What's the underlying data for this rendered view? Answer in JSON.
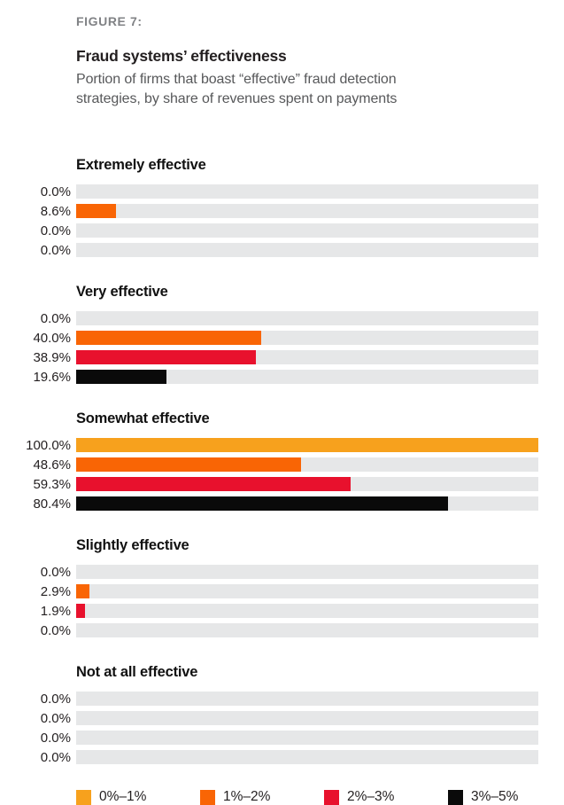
{
  "header": {
    "figure_label": "FIGURE 7:",
    "title": "Fraud systems’ effectiveness",
    "subtitle_line1": "Portion of firms that boast “effective” fraud detection",
    "subtitle_line2": "strategies, by share of revenues spent on payments"
  },
  "palette": {
    "figure_label_gray": "#808285",
    "subtitle_gray": "#57585a",
    "text_black": "#231f20",
    "bar_track_gray": "#e6e7e8"
  },
  "chart_data": {
    "type": "bar",
    "orientation": "horizontal",
    "title": "Fraud systems’ effectiveness",
    "subtitle": "Portion of firms that boast “effective” fraud detection strategies, by share of revenues spent on payments",
    "categories": [
      "Extremely effective",
      "Very effective",
      "Somewhat effective",
      "Slightly effective",
      "Not at all effective"
    ],
    "series": [
      {
        "name": "0%–1%",
        "color": "#f7a11d",
        "values": [
          0.0,
          0.0,
          100.0,
          0.0,
          0.0
        ]
      },
      {
        "name": "1%–2%",
        "color": "#f96505",
        "values": [
          8.6,
          40.0,
          48.6,
          2.9,
          0.0
        ]
      },
      {
        "name": "2%–3%",
        "color": "#e8112d",
        "values": [
          0.0,
          38.9,
          59.3,
          1.9,
          0.0
        ]
      },
      {
        "name": "3%–5%",
        "color": "#0a0a0a",
        "values": [
          0.0,
          19.6,
          80.4,
          0.0,
          0.0
        ]
      }
    ],
    "value_labels": [
      [
        "0.0%",
        "0.0%",
        "100.0%",
        "0.0%",
        "0.0%"
      ],
      [
        "8.6%",
        "40.0%",
        "48.6%",
        "2.9%",
        "0.0%"
      ],
      [
        "0.0%",
        "38.9%",
        "59.3%",
        "1.9%",
        "0.0%"
      ],
      [
        "0.0%",
        "19.6%",
        "80.4%",
        "0.0%",
        "0.0%"
      ]
    ],
    "xlim": [
      0,
      100
    ],
    "grid": false,
    "track_color": "#e6e7e8",
    "legend_position": "bottom"
  }
}
